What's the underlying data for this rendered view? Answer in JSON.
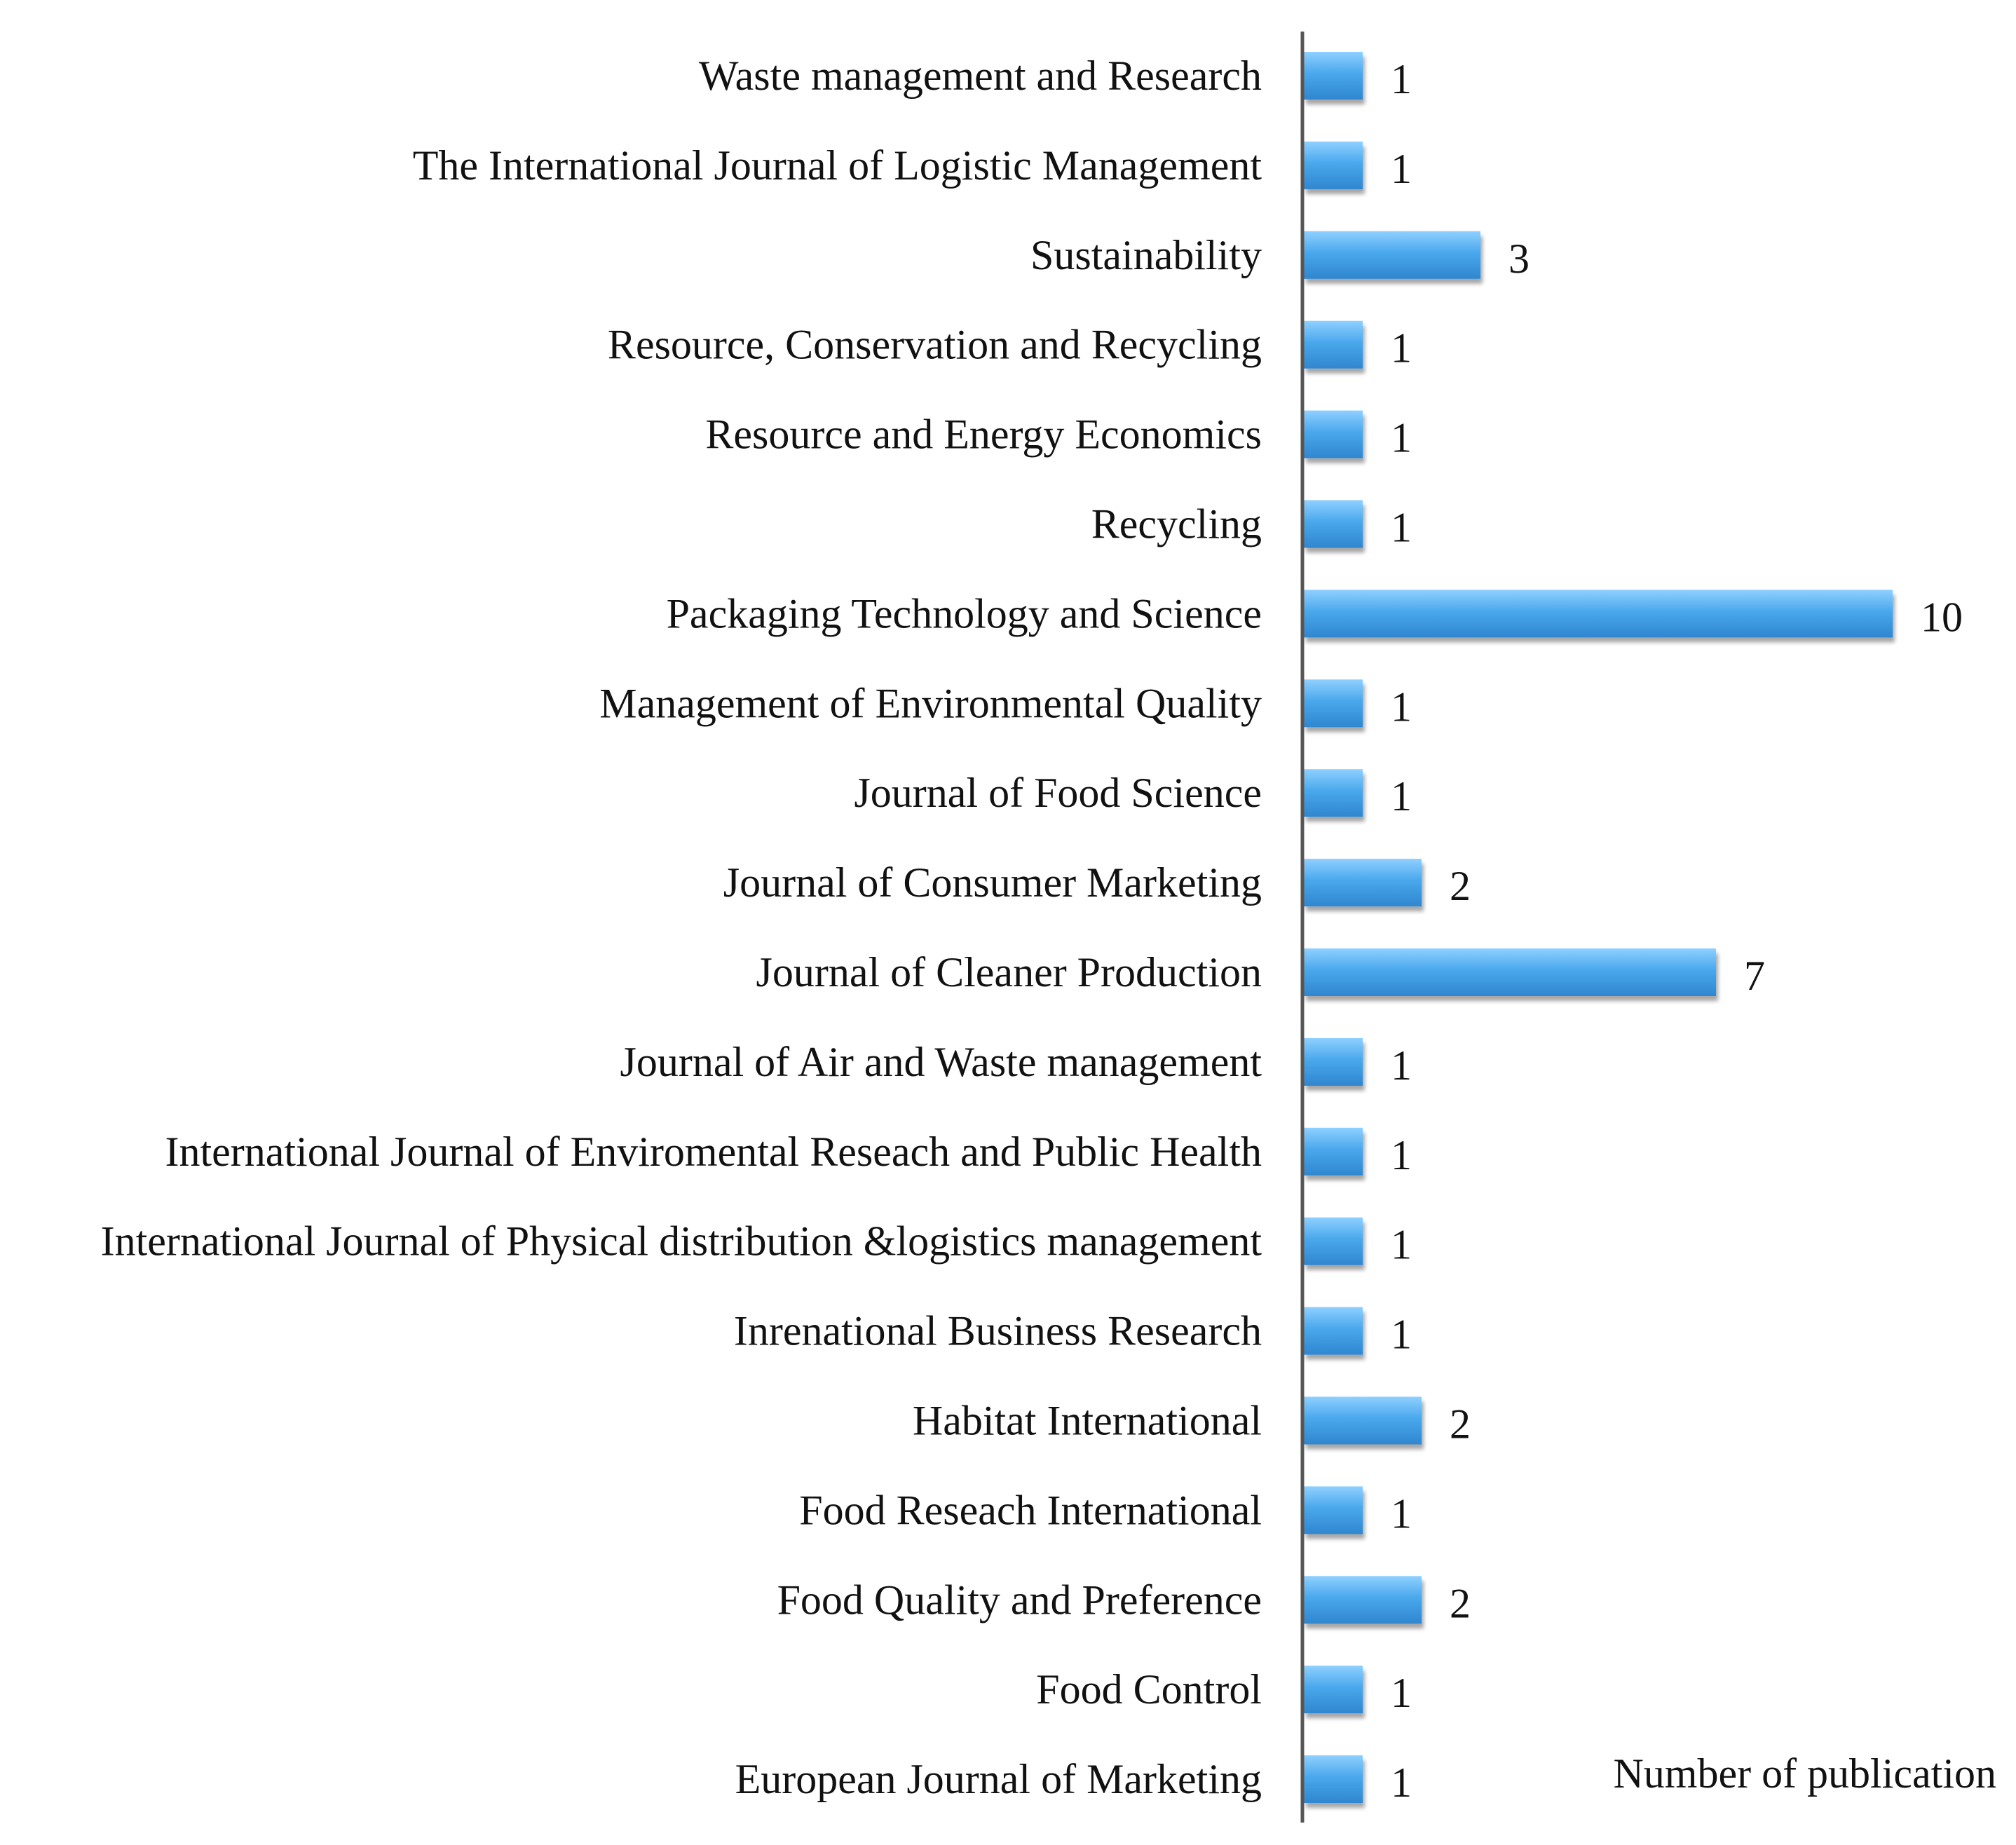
{
  "chart_data": {
    "type": "bar",
    "orientation": "horizontal",
    "categories": [
      "Waste management and Research",
      "The International Journal of Logistic Management",
      "Sustainability",
      "Resource, Conservation and Recycling",
      "Resource and Energy Economics",
      "Recycling",
      "Packaging Technology and Science",
      "Management of Environmental Quality",
      "Journal of Food Science",
      "Journal of Consumer Marketing",
      "Journal of Cleaner Production",
      "Journal of Air and Waste management",
      "International Journal of Enviromental Reseach and Public Health",
      "International Journal of Physical distribution &logistics management",
      "Inrenational Business Research",
      "Habitat International",
      "Food Reseach International",
      "Food Quality and Preference",
      "Food Control",
      "European Journal of Marketing"
    ],
    "values": [
      1,
      1,
      3,
      1,
      1,
      1,
      10,
      1,
      1,
      2,
      7,
      1,
      1,
      1,
      1,
      2,
      1,
      2,
      1,
      1
    ],
    "data_labels": [
      "1",
      "1",
      "3",
      "1",
      "1",
      "1",
      "10",
      "1",
      "1",
      "2",
      "7",
      "1",
      "1",
      "1",
      "1",
      "2",
      "1",
      "2",
      "1",
      "1"
    ],
    "xlabel": "Number of publication",
    "ylabel": "",
    "xlim": [
      0,
      10
    ],
    "grid": false,
    "bar_color": "#4aa8ec",
    "bar_color_light": "#8fd0ff",
    "bar_color_dark": "#2f86cf"
  }
}
